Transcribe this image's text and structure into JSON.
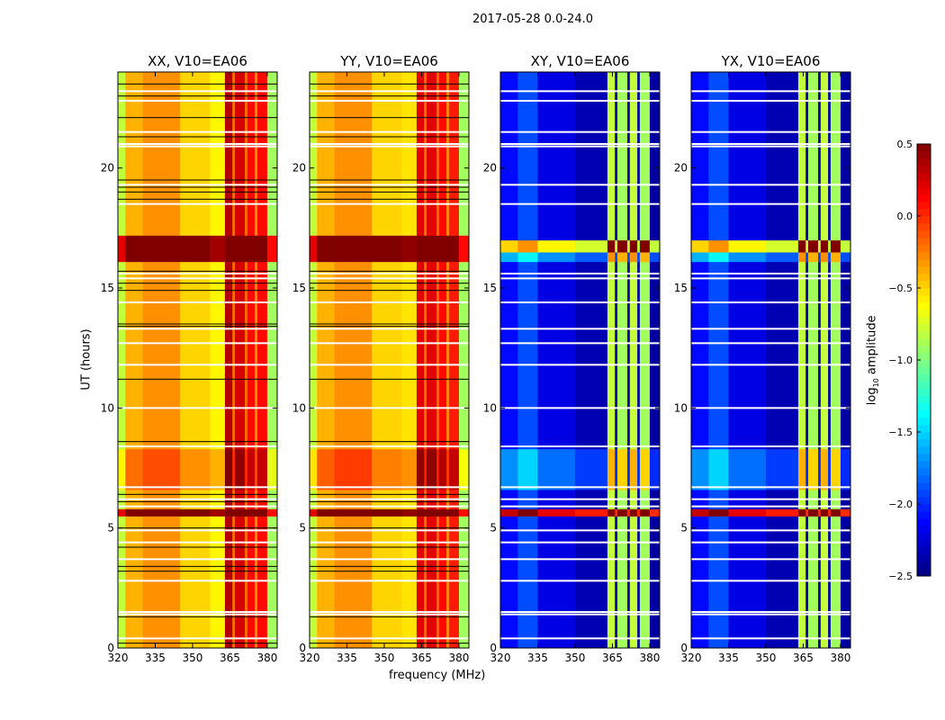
{
  "chart_data": {
    "type": "heatmap",
    "title": "2017-05-28 0.0-24.0",
    "xlabel": "frequency (MHz)",
    "ylabel": "UT (hours)",
    "xlim": [
      320,
      384
    ],
    "ylim": [
      0,
      24
    ],
    "xticks": [
      "320",
      "335",
      "350",
      "365",
      "380"
    ],
    "xtick_values": [
      320,
      335,
      350,
      365,
      380
    ],
    "yticks": [
      "0",
      "5",
      "10",
      "15",
      "20"
    ],
    "ytick_values": [
      0,
      5,
      10,
      15,
      20
    ],
    "colorbar": {
      "label_prefix": "log",
      "label_sub": "10",
      "label_suffix": " amplitude",
      "vmin": -2.5,
      "vmax": 0.5,
      "ticks": [
        "0.5",
        "0.0",
        "−0.5",
        "−1.0",
        "−1.5",
        "−2.0",
        "−2.5"
      ],
      "tick_values": [
        0.5,
        0,
        -0.5,
        -1,
        -1.5,
        -2,
        -2.5
      ]
    },
    "white_flags": [
      23.2,
      22.8,
      21.5,
      21.0,
      20.9,
      19.3,
      18.5,
      15.6,
      15.4,
      14.4,
      13.3,
      12.7,
      11.8,
      10.0,
      8.4,
      6.7,
      6.2,
      5.9,
      4.9,
      4.4,
      3.7,
      2.8,
      1.5,
      1.4,
      0.4
    ],
    "black_flags": [
      23.5,
      23.0,
      22.1,
      21.3,
      19.5,
      19.2,
      19.0,
      18.7,
      15.7,
      15.2,
      14.9,
      13.5,
      13.4,
      11.2,
      8.6,
      6.4,
      6.1,
      5.0,
      4.2,
      3.4,
      3.2,
      1.3,
      0.2
    ],
    "panels": [
      {
        "title": "XX, V10=EA06",
        "freq_profile": [
          [
            320,
            323,
            -0.8
          ],
          [
            323,
            330,
            -0.4
          ],
          [
            330,
            345,
            -0.3
          ],
          [
            345,
            357,
            -0.5
          ],
          [
            357,
            363,
            -0.6
          ],
          [
            363,
            366,
            0.35
          ],
          [
            366,
            367,
            -0.2
          ],
          [
            367,
            371,
            0.25
          ],
          [
            371,
            372,
            -0.2
          ],
          [
            372,
            375,
            0.1
          ],
          [
            375,
            376,
            -0.3
          ],
          [
            376,
            380,
            0.1
          ],
          [
            380,
            384,
            -0.9
          ]
        ],
        "time_mods": [
          [
            16.1,
            17.2,
            1.0
          ],
          [
            5.5,
            5.8,
            1.0
          ],
          [
            6.6,
            8.3,
            0.2
          ]
        ]
      },
      {
        "title": "YY, V10=EA06",
        "freq_profile": [
          [
            320,
            323,
            -0.8
          ],
          [
            323,
            330,
            -0.4
          ],
          [
            330,
            345,
            -0.3
          ],
          [
            345,
            357,
            -0.5
          ],
          [
            357,
            363,
            -0.55
          ],
          [
            363,
            366,
            0.2
          ],
          [
            366,
            367,
            -0.2
          ],
          [
            367,
            371,
            0.2
          ],
          [
            371,
            372,
            -0.2
          ],
          [
            372,
            375,
            0.1
          ],
          [
            375,
            376,
            -0.3
          ],
          [
            376,
            380,
            0.05
          ],
          [
            380,
            384,
            -0.9
          ]
        ],
        "time_mods": [
          [
            16.1,
            17.2,
            1.0
          ],
          [
            5.5,
            5.8,
            1.0
          ],
          [
            6.6,
            8.3,
            0.25
          ]
        ]
      },
      {
        "title": "XY, V10=EA06",
        "freq_profile": [
          [
            320,
            327,
            -2.1
          ],
          [
            327,
            335,
            -1.9
          ],
          [
            335,
            350,
            -2.2
          ],
          [
            350,
            363,
            -2.35
          ],
          [
            363,
            366,
            -0.8
          ],
          [
            366,
            367,
            -2.4
          ],
          [
            367,
            371,
            -0.9
          ],
          [
            371,
            372,
            -2.4
          ],
          [
            372,
            375,
            -0.8
          ],
          [
            375,
            376,
            -2.4
          ],
          [
            376,
            380,
            -0.9
          ],
          [
            380,
            384,
            -2.4
          ]
        ],
        "time_mods": [
          [
            16.5,
            17.0,
            1.6
          ],
          [
            16.1,
            16.5,
            0.5
          ],
          [
            5.5,
            5.8,
            2.4
          ],
          [
            6.6,
            8.3,
            0.4
          ]
        ]
      },
      {
        "title": "YX, V10=EA06",
        "freq_profile": [
          [
            320,
            327,
            -2.1
          ],
          [
            327,
            335,
            -1.9
          ],
          [
            335,
            350,
            -2.2
          ],
          [
            350,
            363,
            -2.35
          ],
          [
            363,
            366,
            -0.8
          ],
          [
            366,
            367,
            -2.4
          ],
          [
            367,
            371,
            -0.9
          ],
          [
            371,
            372,
            -2.4
          ],
          [
            372,
            375,
            -0.8
          ],
          [
            375,
            376,
            -2.4
          ],
          [
            376,
            380,
            -0.9
          ],
          [
            380,
            384,
            -2.4
          ]
        ],
        "time_mods": [
          [
            16.5,
            17.0,
            1.6
          ],
          [
            16.1,
            16.5,
            0.5
          ],
          [
            5.5,
            5.8,
            2.4
          ],
          [
            6.6,
            8.3,
            0.4
          ]
        ]
      }
    ]
  }
}
